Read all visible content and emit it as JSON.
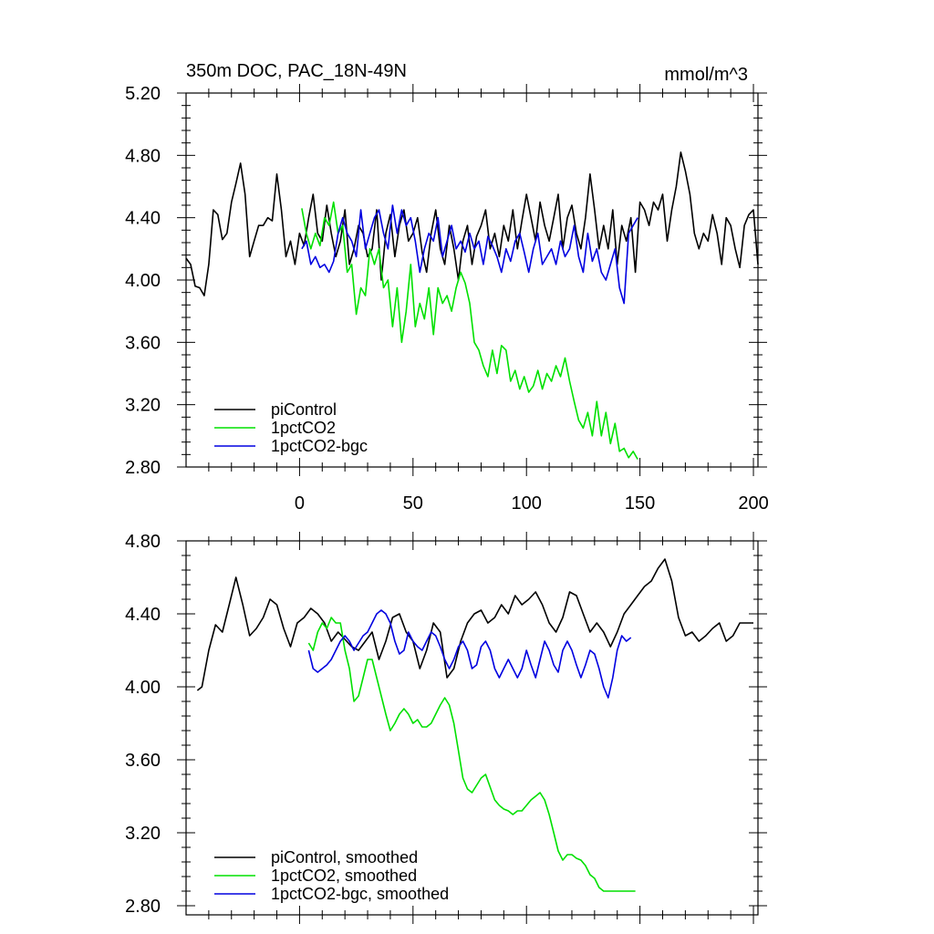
{
  "chart_data": [
    {
      "type": "line",
      "title": "350m DOC, PAC_18N-49N",
      "units": "mmol/m^3",
      "xlim": [
        -50,
        202
      ],
      "ylim": [
        2.8,
        5.2
      ],
      "x_ticks": [
        0,
        50,
        100,
        150,
        200
      ],
      "y_ticks": [
        "2.80",
        "3.20",
        "3.60",
        "4.00",
        "4.40",
        "4.80",
        "5.20"
      ],
      "x_tick_values": [
        0,
        50,
        100,
        150,
        200
      ],
      "y_tick_values": [
        2.8,
        3.2,
        3.6,
        4.0,
        4.4,
        4.8,
        5.2
      ],
      "series": [
        {
          "name": "piControl",
          "color": "#000000",
          "x": [
            -50,
            -48,
            -46,
            -44,
            -42,
            -40,
            -38,
            -36,
            -34,
            -32,
            -30,
            -28,
            -26,
            -24,
            -22,
            -20,
            -18,
            -16,
            -14,
            -12,
            -10,
            -8,
            -6,
            -4,
            -2,
            0,
            2,
            4,
            6,
            8,
            10,
            12,
            14,
            16,
            18,
            20,
            22,
            24,
            26,
            28,
            30,
            32,
            34,
            36,
            38,
            40,
            42,
            44,
            46,
            48,
            50,
            52,
            54,
            56,
            58,
            60,
            62,
            64,
            66,
            68,
            70,
            72,
            74,
            76,
            78,
            80,
            82,
            84,
            86,
            88,
            90,
            92,
            94,
            96,
            98,
            100,
            102,
            104,
            106,
            108,
            110,
            112,
            114,
            116,
            118,
            120,
            122,
            124,
            126,
            128,
            130,
            132,
            134,
            136,
            138,
            140,
            142,
            144,
            146,
            148,
            150,
            152,
            154,
            156,
            158,
            160,
            162,
            164,
            166,
            168,
            170,
            172,
            174,
            176,
            178,
            180,
            182,
            184,
            186,
            188,
            190,
            192,
            194,
            196,
            198,
            200,
            202
          ],
          "values": [
            4.14,
            4.1,
            3.96,
            3.95,
            3.9,
            4.1,
            4.45,
            4.42,
            4.26,
            4.3,
            4.5,
            4.62,
            4.75,
            4.55,
            4.15,
            4.25,
            4.35,
            4.35,
            4.4,
            4.38,
            4.68,
            4.45,
            4.15,
            4.25,
            4.1,
            4.3,
            4.22,
            4.4,
            4.55,
            4.3,
            4.25,
            4.48,
            4.3,
            4.15,
            4.25,
            4.45,
            4.1,
            4.2,
            4.35,
            4.3,
            4.15,
            4.2,
            4.45,
            4.0,
            4.3,
            4.42,
            4.15,
            4.35,
            4.45,
            4.25,
            4.3,
            4.4,
            4.18,
            4.05,
            4.3,
            4.45,
            4.2,
            4.1,
            4.35,
            4.2,
            4.0,
            4.25,
            4.35,
            4.1,
            4.28,
            4.35,
            4.45,
            4.2,
            4.3,
            4.15,
            4.35,
            4.25,
            4.45,
            4.2,
            4.38,
            4.55,
            4.4,
            4.25,
            4.5,
            4.35,
            4.25,
            4.4,
            4.55,
            4.2,
            4.4,
            4.48,
            4.3,
            4.2,
            4.4,
            4.68,
            4.45,
            4.2,
            4.35,
            4.2,
            4.45,
            4.1,
            4.35,
            4.25,
            4.4,
            4.05,
            4.5,
            4.45,
            4.35,
            4.5,
            4.45,
            4.55,
            4.25,
            4.45,
            4.6,
            4.82,
            4.7,
            4.55,
            4.3,
            4.2,
            4.3,
            4.25,
            4.42,
            4.3,
            4.1,
            4.4,
            4.35,
            4.2,
            4.08,
            4.35,
            4.42,
            4.45,
            4.1
          ],
          "label": "piControl"
        },
        {
          "name": "1pctCO2",
          "color": "#00e000",
          "x": [
            1,
            3,
            5,
            7,
            9,
            11,
            13,
            15,
            17,
            19,
            21,
            23,
            25,
            27,
            29,
            31,
            33,
            35,
            37,
            39,
            41,
            43,
            45,
            47,
            49,
            51,
            53,
            55,
            57,
            59,
            61,
            63,
            65,
            67,
            69,
            71,
            73,
            75,
            77,
            79,
            81,
            83,
            85,
            87,
            89,
            91,
            93,
            95,
            97,
            99,
            101,
            103,
            105,
            107,
            109,
            111,
            113,
            115,
            117,
            119,
            121,
            123,
            125,
            127,
            129,
            131,
            133,
            135,
            137,
            139,
            141,
            143,
            145,
            147,
            149
          ],
          "values": [
            4.46,
            4.3,
            4.2,
            4.3,
            4.22,
            4.4,
            4.35,
            4.5,
            4.3,
            4.35,
            4.05,
            4.1,
            3.78,
            3.95,
            3.9,
            4.2,
            4.1,
            4.2,
            3.95,
            4.0,
            3.7,
            3.95,
            3.6,
            3.8,
            4.1,
            3.7,
            3.85,
            3.75,
            3.95,
            3.65,
            3.95,
            3.85,
            3.9,
            3.8,
            3.95,
            4.05,
            3.98,
            3.85,
            3.6,
            3.55,
            3.45,
            3.38,
            3.55,
            3.4,
            3.58,
            3.55,
            3.35,
            3.42,
            3.3,
            3.38,
            3.28,
            3.32,
            3.42,
            3.3,
            3.4,
            3.35,
            3.45,
            3.38,
            3.5,
            3.35,
            3.22,
            3.1,
            3.05,
            3.15,
            3.0,
            3.22,
            3.0,
            3.15,
            2.95,
            3.08,
            2.9,
            2.92,
            2.86,
            2.9,
            2.85
          ],
          "label": "1pctCO2"
        },
        {
          "name": "1pctCO2-bgc",
          "color": "#0000e0",
          "x": [
            1,
            3,
            5,
            7,
            9,
            11,
            13,
            15,
            17,
            19,
            21,
            23,
            25,
            27,
            29,
            31,
            33,
            35,
            37,
            39,
            41,
            43,
            45,
            47,
            49,
            51,
            53,
            55,
            57,
            59,
            61,
            63,
            65,
            67,
            69,
            71,
            73,
            75,
            77,
            79,
            81,
            83,
            85,
            87,
            89,
            91,
            93,
            95,
            97,
            99,
            101,
            103,
            105,
            107,
            109,
            111,
            113,
            115,
            117,
            119,
            121,
            123,
            125,
            127,
            129,
            131,
            133,
            135,
            137,
            139,
            141,
            143,
            145,
            147,
            149
          ],
          "values": [
            4.2,
            4.25,
            4.1,
            4.15,
            4.08,
            4.1,
            4.05,
            4.12,
            4.3,
            4.4,
            4.3,
            4.25,
            4.15,
            4.45,
            4.2,
            4.3,
            4.4,
            4.45,
            4.3,
            4.2,
            4.48,
            4.3,
            4.45,
            4.35,
            4.4,
            4.25,
            4.05,
            4.2,
            4.3,
            4.25,
            4.4,
            4.15,
            4.25,
            4.35,
            4.2,
            4.25,
            4.18,
            4.3,
            4.2,
            4.25,
            4.1,
            4.28,
            4.22,
            4.15,
            4.05,
            4.2,
            4.12,
            4.25,
            4.3,
            4.18,
            4.05,
            4.2,
            4.3,
            4.1,
            4.15,
            4.2,
            4.1,
            4.25,
            4.15,
            4.2,
            4.35,
            4.15,
            4.05,
            4.3,
            4.12,
            4.2,
            4.05,
            4.0,
            4.1,
            4.2,
            3.95,
            3.85,
            4.3,
            4.35,
            4.4
          ],
          "label": "1pctCO2-bgc"
        }
      ],
      "legend": [
        "piControl",
        "1pctCO2",
        "1pctCO2-bgc"
      ],
      "legend_position": "bottom-left"
    },
    {
      "type": "line",
      "title": "",
      "units": "",
      "xlim": [
        -50,
        202
      ],
      "ylim": [
        2.75,
        4.8
      ],
      "y_ticks": [
        "2.80",
        "3.20",
        "3.60",
        "4.00",
        "4.40",
        "4.80"
      ],
      "y_tick_values": [
        2.8,
        3.2,
        3.6,
        4.0,
        4.4,
        4.8
      ],
      "series": [
        {
          "name": "piControl, smoothed",
          "color": "#000000",
          "x": [
            -45,
            -43,
            -40,
            -37,
            -34,
            -31,
            -28,
            -25,
            -22,
            -19,
            -16,
            -13,
            -10,
            -7,
            -4,
            -1,
            2,
            5,
            8,
            11,
            14,
            17,
            20,
            23,
            26,
            29,
            32,
            35,
            38,
            41,
            44,
            47,
            50,
            53,
            56,
            59,
            62,
            65,
            68,
            71,
            74,
            77,
            80,
            83,
            86,
            89,
            92,
            95,
            98,
            101,
            104,
            107,
            110,
            113,
            116,
            119,
            122,
            125,
            128,
            131,
            134,
            137,
            140,
            143,
            146,
            149,
            152,
            155,
            158,
            161,
            164,
            167,
            170,
            173,
            176,
            179,
            182,
            185,
            188,
            191,
            194,
            197,
            200
          ],
          "values": [
            3.98,
            4.0,
            4.2,
            4.34,
            4.3,
            4.45,
            4.6,
            4.45,
            4.28,
            4.32,
            4.38,
            4.48,
            4.45,
            4.32,
            4.22,
            4.35,
            4.38,
            4.43,
            4.4,
            4.35,
            4.25,
            4.3,
            4.26,
            4.22,
            4.2,
            4.25,
            4.3,
            4.15,
            4.25,
            4.38,
            4.4,
            4.3,
            4.25,
            4.1,
            4.2,
            4.35,
            4.3,
            4.05,
            4.1,
            4.25,
            4.35,
            4.4,
            4.42,
            4.35,
            4.38,
            4.45,
            4.4,
            4.5,
            4.45,
            4.48,
            4.52,
            4.45,
            4.35,
            4.3,
            4.38,
            4.52,
            4.5,
            4.4,
            4.3,
            4.35,
            4.3,
            4.22,
            4.3,
            4.4,
            4.45,
            4.5,
            4.55,
            4.58,
            4.65,
            4.7,
            4.58,
            4.38,
            4.28,
            4.3,
            4.25,
            4.28,
            4.32,
            4.35,
            4.25,
            4.28,
            4.35,
            4.35,
            4.35
          ],
          "label": "piControl, smoothed"
        },
        {
          "name": "1pctCO2, smoothed",
          "color": "#00e000",
          "x": [
            4,
            6,
            8,
            10,
            12,
            14,
            16,
            18,
            20,
            22,
            24,
            26,
            28,
            30,
            32,
            34,
            36,
            38,
            40,
            42,
            44,
            46,
            48,
            50,
            52,
            54,
            56,
            58,
            60,
            62,
            64,
            66,
            68,
            70,
            72,
            74,
            76,
            78,
            80,
            82,
            84,
            86,
            88,
            90,
            92,
            94,
            96,
            98,
            100,
            102,
            104,
            106,
            108,
            110,
            112,
            114,
            116,
            118,
            120,
            122,
            124,
            126,
            128,
            130,
            132,
            134,
            136,
            138,
            140,
            142,
            144,
            146,
            148
          ],
          "values": [
            4.24,
            4.2,
            4.3,
            4.35,
            4.32,
            4.38,
            4.35,
            4.35,
            4.2,
            4.1,
            3.92,
            3.95,
            4.05,
            4.15,
            4.15,
            4.05,
            3.95,
            3.85,
            3.76,
            3.8,
            3.85,
            3.88,
            3.85,
            3.8,
            3.82,
            3.78,
            3.78,
            3.8,
            3.85,
            3.9,
            3.94,
            3.9,
            3.8,
            3.65,
            3.5,
            3.44,
            3.42,
            3.46,
            3.5,
            3.52,
            3.45,
            3.38,
            3.35,
            3.33,
            3.32,
            3.3,
            3.32,
            3.32,
            3.35,
            3.38,
            3.4,
            3.42,
            3.38,
            3.3,
            3.2,
            3.1,
            3.05,
            3.08,
            3.08,
            3.06,
            3.05,
            3.02,
            2.97,
            2.95,
            2.9,
            2.88,
            2.88,
            2.88,
            2.88,
            2.88,
            2.88,
            2.88,
            2.88
          ],
          "label": "1pctCO2, smoothed"
        },
        {
          "name": "1pctCO2-bgc, smoothed",
          "color": "#0000e0",
          "x": [
            4,
            6,
            8,
            10,
            12,
            14,
            16,
            18,
            20,
            22,
            24,
            26,
            28,
            30,
            32,
            34,
            36,
            38,
            40,
            42,
            44,
            46,
            48,
            50,
            52,
            54,
            56,
            58,
            60,
            62,
            64,
            66,
            68,
            70,
            72,
            74,
            76,
            78,
            80,
            82,
            84,
            86,
            88,
            90,
            92,
            94,
            96,
            98,
            100,
            102,
            104,
            106,
            108,
            110,
            112,
            114,
            116,
            118,
            120,
            122,
            124,
            126,
            128,
            130,
            132,
            134,
            136,
            138,
            140,
            142,
            144,
            146
          ],
          "values": [
            4.2,
            4.1,
            4.08,
            4.1,
            4.12,
            4.15,
            4.2,
            4.25,
            4.28,
            4.25,
            4.2,
            4.24,
            4.28,
            4.3,
            4.35,
            4.4,
            4.42,
            4.4,
            4.35,
            4.25,
            4.18,
            4.2,
            4.3,
            4.25,
            4.22,
            4.2,
            4.25,
            4.3,
            4.28,
            4.22,
            4.15,
            4.1,
            4.15,
            4.22,
            4.25,
            4.2,
            4.1,
            4.12,
            4.22,
            4.25,
            4.2,
            4.1,
            4.05,
            4.1,
            4.15,
            4.1,
            4.05,
            4.1,
            4.2,
            4.12,
            4.05,
            4.15,
            4.25,
            4.2,
            4.12,
            4.08,
            4.2,
            4.25,
            4.2,
            4.12,
            4.05,
            4.12,
            4.2,
            4.18,
            4.1,
            4.0,
            3.94,
            4.05,
            4.2,
            4.28,
            4.25,
            4.27
          ],
          "label": "1pctCO2-bgc, smoothed"
        }
      ],
      "legend": [
        "piControl, smoothed",
        "1pctCO2, smoothed",
        "1pctCO2-bgc, smoothed"
      ],
      "legend_position": "bottom-left"
    }
  ]
}
